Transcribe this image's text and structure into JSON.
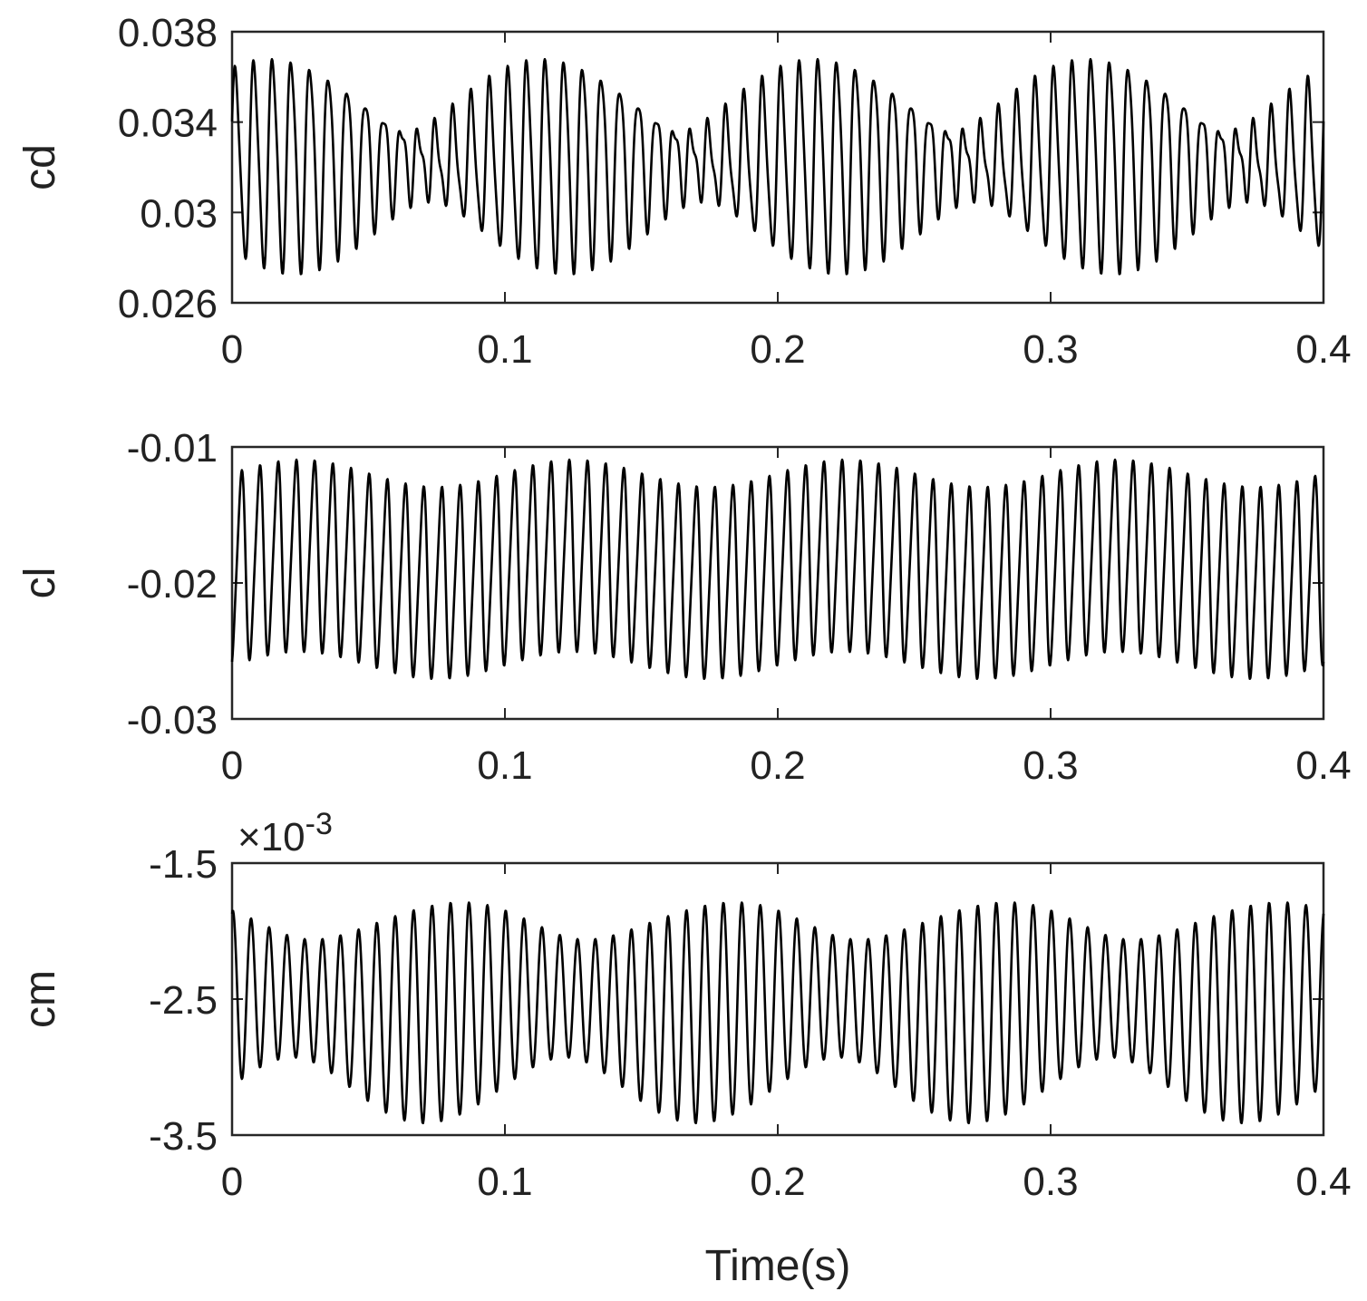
{
  "chart_data": [
    {
      "type": "line",
      "ylabel": "cd",
      "xlabel": "",
      "xlim": [
        0,
        0.4
      ],
      "ylim": [
        0.026,
        0.038
      ],
      "xticks": [
        0,
        0.1,
        0.2,
        0.3,
        0.4
      ],
      "xtick_labels": [
        "0",
        "0.1",
        "0.2",
        "0.3",
        "0.4"
      ],
      "yticks": [
        0.038,
        0.034,
        0.03,
        0.026
      ],
      "ytick_labels": [
        "0.038",
        "0.034",
        "0.03",
        "0.026"
      ],
      "exponent_label": "",
      "grid": false,
      "series": [
        {
          "samples_per_sec": 5000,
          "model": {
            "offset": 0.03225,
            "components": [
              {
                "amp": 0.003,
                "freq": 150,
                "phase": 0.0
              },
              {
                "amp": 0.0016,
                "freq": 140,
                "phase": 1.2
              },
              {
                "amp": 0.0006,
                "freq": 300,
                "phase": 0.5
              }
            ]
          }
        }
      ]
    },
    {
      "type": "line",
      "ylabel": "cl",
      "xlabel": "",
      "xlim": [
        0,
        0.4
      ],
      "ylim": [
        -0.03,
        -0.01
      ],
      "xticks": [
        0,
        0.1,
        0.2,
        0.3,
        0.4
      ],
      "xtick_labels": [
        "0",
        "0.1",
        "0.2",
        "0.3",
        "0.4"
      ],
      "yticks": [
        -0.01,
        -0.02,
        -0.03
      ],
      "ytick_labels": [
        "-0.01",
        "-0.02",
        "-0.03"
      ],
      "exponent_label": "",
      "grid": false,
      "series": [
        {
          "samples_per_sec": 5000,
          "model": {
            "offset": -0.019,
            "components": [
              {
                "amp": 0.0068,
                "freq": 150,
                "phase": -1.5708
              },
              {
                "amp": 0.001,
                "freq": 10,
                "phase": 0.0
              },
              {
                "amp": 0.001,
                "freq": 300,
                "phase": 0.0
              }
            ]
          }
        }
      ]
    },
    {
      "type": "line",
      "ylabel": "cm",
      "xlabel": "Time(s)",
      "xlim": [
        0,
        0.4
      ],
      "ylim": [
        -3.5,
        -1.5
      ],
      "xticks": [
        0,
        0.1,
        0.2,
        0.3,
        0.4
      ],
      "xtick_labels": [
        "0",
        "0.1",
        "0.2",
        "0.3",
        "0.4"
      ],
      "yticks": [
        -1.5,
        -2.5,
        -3.5
      ],
      "ytick_labels": [
        "-1.5",
        "-2.5",
        "-3.5"
      ],
      "exponent_label": "×10",
      "exponent_power": "-3",
      "grid": false,
      "series": [
        {
          "samples_per_sec": 5000,
          "model": {
            "offset": -2.55,
            "components": [
              {
                "amp": 0.62,
                "freq": 150,
                "phase": 1.5708
              },
              {
                "amp": 0.18,
                "freq": 140,
                "phase": 0.0
              },
              {
                "amp": 0.08,
                "freq": 10,
                "phase": 0.8
              }
            ]
          }
        }
      ]
    }
  ]
}
